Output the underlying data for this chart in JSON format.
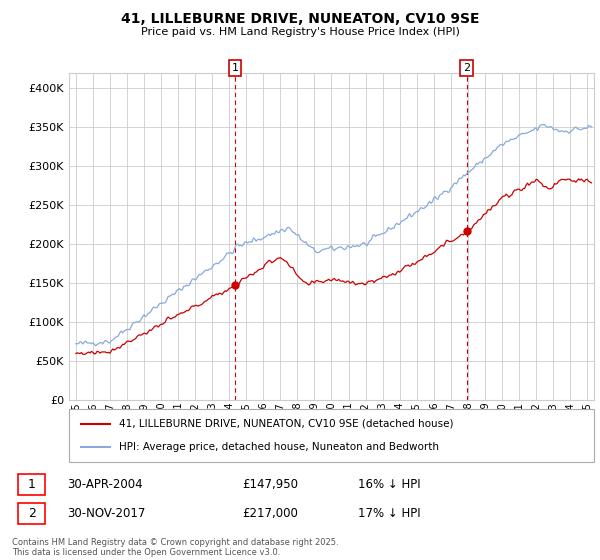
{
  "title": "41, LILLEBURNE DRIVE, NUNEATON, CV10 9SE",
  "subtitle": "Price paid vs. HM Land Registry's House Price Index (HPI)",
  "legend_red": "41, LILLEBURNE DRIVE, NUNEATON, CV10 9SE (detached house)",
  "legend_blue": "HPI: Average price, detached house, Nuneaton and Bedworth",
  "annotation1_date": "30-APR-2004",
  "annotation1_price": "£147,950",
  "annotation1_hpi": "16% ↓ HPI",
  "annotation2_date": "30-NOV-2017",
  "annotation2_price": "£217,000",
  "annotation2_hpi": "17% ↓ HPI",
  "footer": "Contains HM Land Registry data © Crown copyright and database right 2025.\nThis data is licensed under the Open Government Licence v3.0.",
  "red_color": "#cc0000",
  "blue_color": "#88aadd",
  "vline_color": "#cc0000",
  "background_color": "#ffffff",
  "grid_color": "#cccccc",
  "ylim": [
    0,
    420000
  ],
  "yticks": [
    0,
    50000,
    100000,
    150000,
    200000,
    250000,
    300000,
    350000,
    400000
  ],
  "xmin": 1994.6,
  "xmax": 2025.4,
  "ann1_x": 2004.33,
  "ann2_x": 2017.92,
  "ann1_y": 147950,
  "ann2_y": 217000
}
